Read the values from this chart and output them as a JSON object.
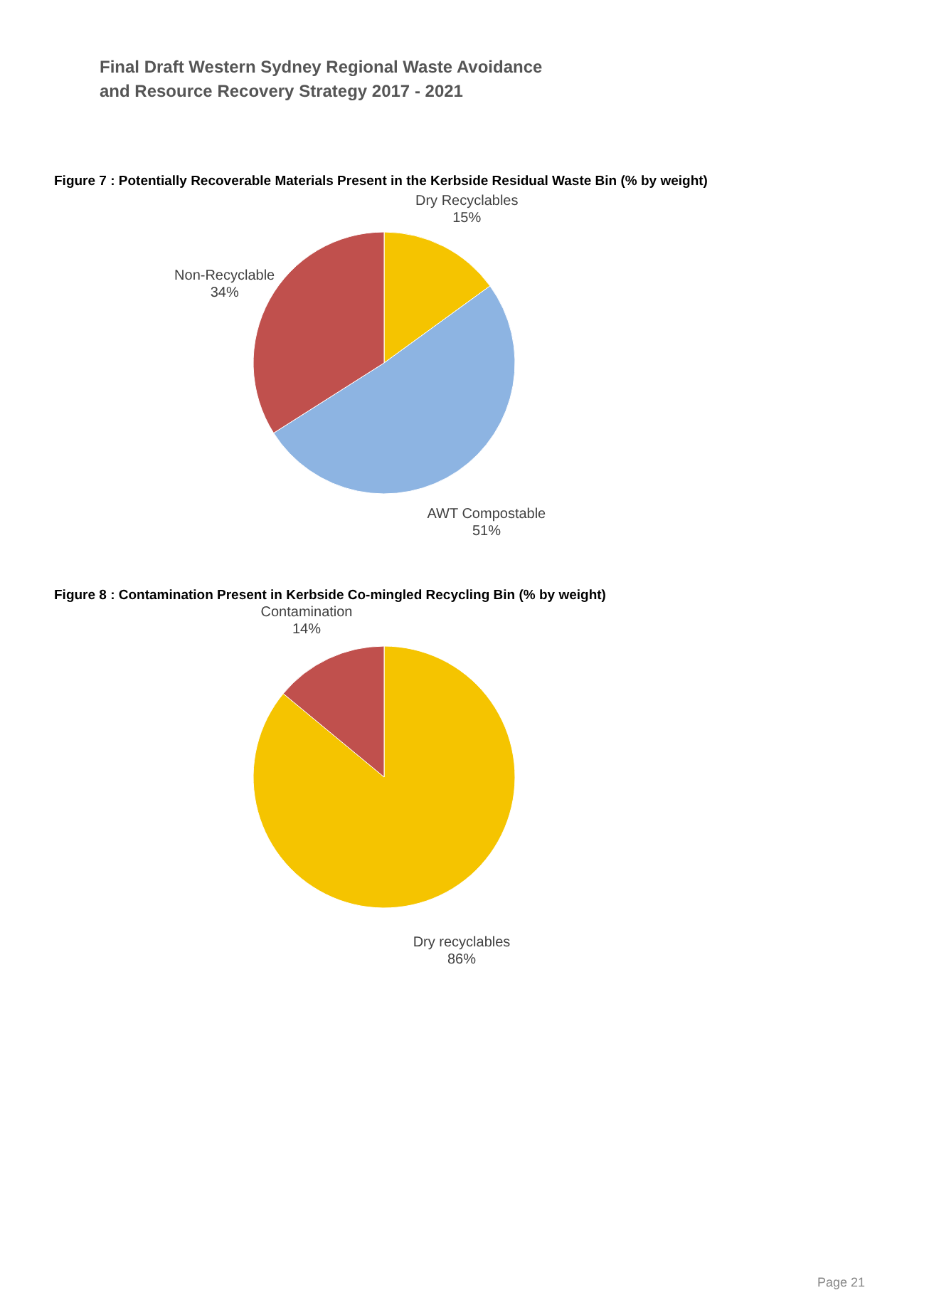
{
  "chart_data": [
    {
      "type": "pie",
      "title": "Figure 7 : Potentially Recoverable Materials Present in the Kerbside Residual Waste Bin (% by weight)",
      "annotations": [
        "Final Draft Western Sydney Regional Waste Avoidance",
        "and Resource Recovery Strategy 2017 - 2021"
      ],
      "categories": [
        "Dry Recyclables",
        "AWT Compostable",
        "Non-Recyclable"
      ],
      "values": [
        15,
        51,
        34
      ],
      "value_labels": [
        "15%",
        "51%",
        "34%"
      ],
      "colors": [
        "#f5c400",
        "#8db4e2",
        "#c0504d"
      ],
      "legend": false
    },
    {
      "type": "pie",
      "title": "Figure 8 : Contamination Present in Kerbside Co-mingled Recycling Bin (% by weight)",
      "annotations": [
        "Page 21"
      ],
      "categories": [
        "Dry recyclables",
        "Contamination"
      ],
      "values": [
        86,
        14
      ],
      "value_labels": [
        "86%",
        "14%"
      ],
      "colors": [
        "#f5c400",
        "#c0504d"
      ],
      "legend": false
    }
  ]
}
